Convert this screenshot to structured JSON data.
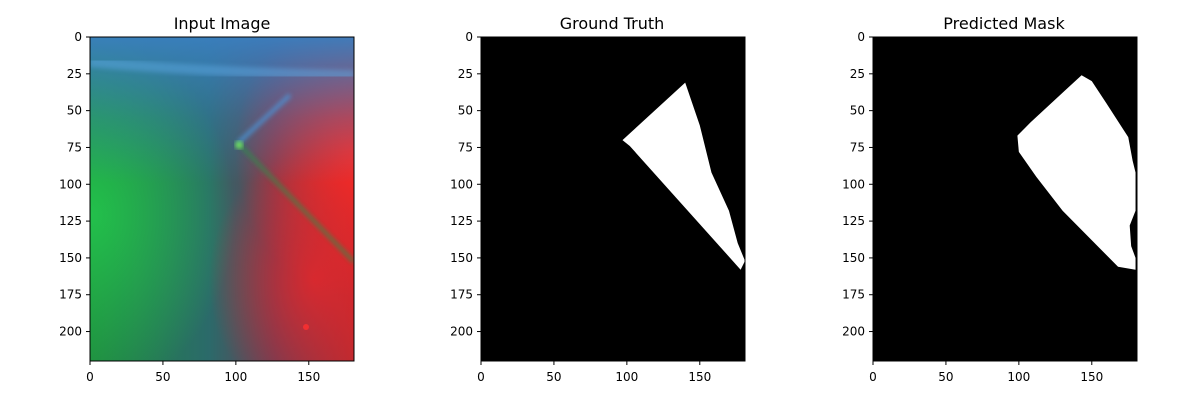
{
  "chart_data": [
    {
      "type": "image",
      "title": "Input Image",
      "content": "rgb-image",
      "xlim": [
        0,
        181
      ],
      "ylim": [
        220,
        0
      ],
      "xticks": [
        0,
        50,
        100,
        150
      ],
      "yticks": [
        0,
        25,
        50,
        75,
        100,
        125,
        150,
        175,
        200
      ],
      "colors": {
        "green": "#1fa23f",
        "teal": "#2b6f78",
        "blue": "#3b85c8",
        "red": "#e0302c",
        "purple": "#6a3a60"
      }
    },
    {
      "type": "image",
      "title": "Ground Truth",
      "content": "binary-mask",
      "xlim": [
        0,
        181
      ],
      "ylim": [
        220,
        0
      ],
      "xticks": [
        0,
        50,
        100,
        150
      ],
      "yticks": [
        0,
        25,
        50,
        75,
        100,
        125,
        150,
        175,
        200
      ],
      "mask_polygon": [
        [
          140,
          31
        ],
        [
          97,
          70
        ],
        [
          102,
          74
        ],
        [
          178,
          158
        ],
        [
          181,
          152
        ],
        [
          176,
          140
        ],
        [
          170,
          118
        ],
        [
          158,
          92
        ],
        [
          150,
          60
        ]
      ],
      "colors": {
        "background": "#000000",
        "mask": "#ffffff"
      }
    },
    {
      "type": "image",
      "title": "Predicted Mask",
      "content": "binary-mask",
      "xlim": [
        0,
        181
      ],
      "ylim": [
        220,
        0
      ],
      "xticks": [
        0,
        50,
        100,
        150
      ],
      "yticks": [
        0,
        25,
        50,
        75,
        100,
        125,
        150,
        175,
        200
      ],
      "mask_polygon": [
        [
          143,
          26
        ],
        [
          132,
          36
        ],
        [
          108,
          58
        ],
        [
          99,
          67
        ],
        [
          100,
          78
        ],
        [
          112,
          95
        ],
        [
          130,
          118
        ],
        [
          150,
          138
        ],
        [
          168,
          156
        ],
        [
          180,
          158
        ],
        [
          180,
          150
        ],
        [
          177,
          142
        ],
        [
          176,
          128
        ],
        [
          180,
          118
        ],
        [
          180,
          92
        ],
        [
          178,
          84
        ],
        [
          175,
          68
        ],
        [
          160,
          45
        ],
        [
          150,
          30
        ]
      ],
      "colors": {
        "background": "#000000",
        "mask": "#ffffff"
      }
    }
  ]
}
